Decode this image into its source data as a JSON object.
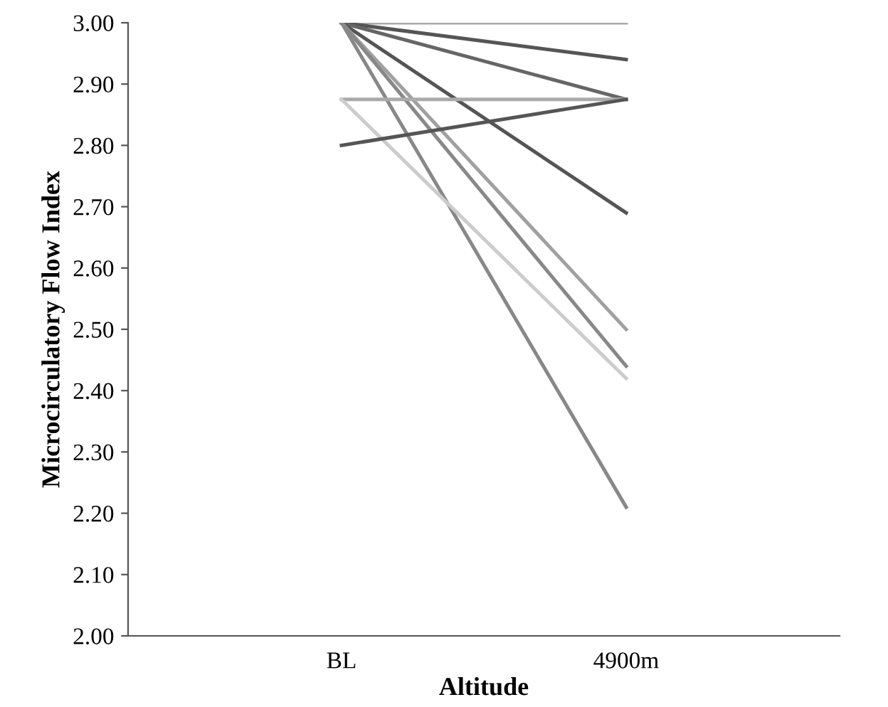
{
  "chart_data": {
    "type": "line",
    "xlabel": "Altitude",
    "ylabel": "Microcirculatory Flow Index",
    "categories": [
      "BL",
      "4900m"
    ],
    "series": [
      {
        "color": "#aaaaaa",
        "values": [
          3.0,
          3.0
        ]
      },
      {
        "color": "#555555",
        "values": [
          3.0,
          2.94
        ]
      },
      {
        "color": "#666666",
        "values": [
          3.0,
          2.875
        ]
      },
      {
        "color": "#555555",
        "values": [
          3.0,
          2.69
        ]
      },
      {
        "color": "#a0a0a0",
        "values": [
          3.0,
          2.5
        ]
      },
      {
        "color": "#888888",
        "values": [
          3.0,
          2.44
        ]
      },
      {
        "color": "#888888",
        "values": [
          3.0,
          2.21
        ]
      },
      {
        "color": "#aaaaaa",
        "values": [
          2.875,
          2.875
        ]
      },
      {
        "color": "#cccccc",
        "values": [
          2.875,
          2.42
        ]
      },
      {
        "color": "#555555",
        "values": [
          2.8,
          2.875
        ]
      }
    ],
    "ylim": [
      2.0,
      3.0
    ],
    "yticks": [
      {
        "value": 2.0,
        "label": "2.00"
      },
      {
        "value": 2.1,
        "label": "2.10"
      },
      {
        "value": 2.2,
        "label": "2.20"
      },
      {
        "value": 2.3,
        "label": "2.30"
      },
      {
        "value": 2.4,
        "label": "2.40"
      },
      {
        "value": 2.5,
        "label": "2.50"
      },
      {
        "value": 2.6,
        "label": "2.60"
      },
      {
        "value": 2.7,
        "label": "2.70"
      },
      {
        "value": 2.8,
        "label": "2.80"
      },
      {
        "value": 2.9,
        "label": "2.90"
      },
      {
        "value": 3.0,
        "label": "3.00"
      }
    ],
    "grid": false,
    "legend": false,
    "marker": "none",
    "line_style": "solid"
  }
}
